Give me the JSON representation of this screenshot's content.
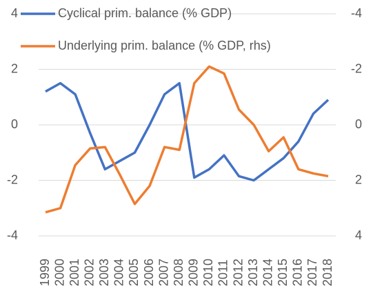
{
  "chart_data": {
    "type": "line",
    "categories": [
      "1999",
      "2000",
      "2001",
      "2002",
      "2003",
      "2004",
      "2005",
      "2006",
      "2007",
      "2008",
      "2009",
      "2010",
      "2011",
      "2012",
      "2013",
      "2014",
      "2015",
      "2016",
      "2017",
      "2018"
    ],
    "series": [
      {
        "name": "Cyclical prim. balance (% GDP)",
        "color": "#4472c4",
        "values": [
          1.2,
          1.5,
          1.1,
          -0.3,
          -1.6,
          -1.3,
          -1.0,
          0,
          1.1,
          1.5,
          -1.9,
          -1.6,
          -1.1,
          -1.85,
          -2.0,
          -1.6,
          -1.2,
          -0.6,
          0.4,
          0.9
        ]
      },
      {
        "name": "Underlying prim. balance (% GDP, rhs)",
        "color": "#ed7d31",
        "axis": "y2",
        "values": [
          3.15,
          3.0,
          1.45,
          0.85,
          0.8,
          1.8,
          2.85,
          2.2,
          0.8,
          0.9,
          -1.5,
          -2.1,
          -1.85,
          -0.55,
          0,
          0.95,
          0.45,
          1.6,
          1.75,
          1.85
        ]
      }
    ],
    "ylim": [
      -4,
      4
    ],
    "yticks": [
      -4,
      -2,
      0,
      2,
      4
    ],
    "y2lim": [
      -4,
      4
    ],
    "y2ticks": [
      -4,
      -2,
      0,
      2,
      4
    ],
    "y2_inverted": true,
    "grid": true,
    "legend": "top-left"
  }
}
